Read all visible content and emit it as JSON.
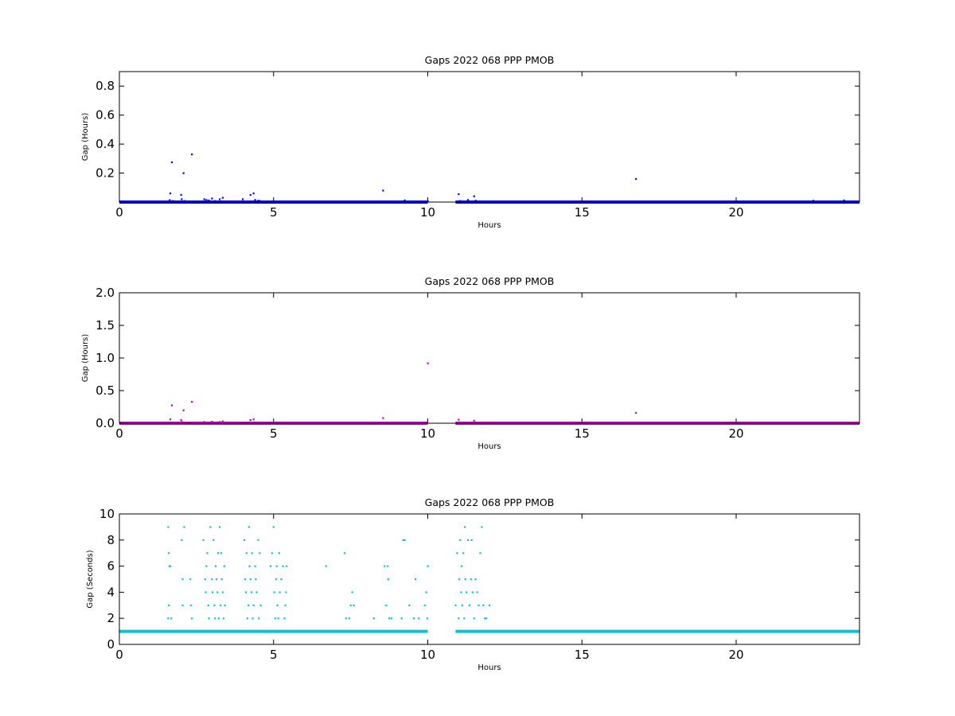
{
  "chart_data": [
    {
      "type": "scatter",
      "title": "Gaps 2022 068 PPP  PMOB",
      "xlabel": "Hours",
      "ylabel": "Gap (Hours)",
      "xlim": [
        0,
        24
      ],
      "ylim": [
        0,
        0.9
      ],
      "xticks": [
        0,
        5,
        10,
        15,
        20
      ],
      "yticks": [
        0.2,
        0.4,
        0.6,
        0.8
      ],
      "grid": false,
      "color": "#0000ff",
      "baseline": {
        "value": 0.0003,
        "ranges": [
          [
            0,
            10.0
          ],
          [
            10.9,
            24
          ]
        ]
      },
      "series": [
        {
          "points": [
            [
              1.63,
              0.014
            ],
            [
              1.65,
              0.06
            ],
            [
              1.7,
              0.275
            ],
            [
              1.73,
              0.008
            ],
            [
              2.0,
              0.05
            ],
            [
              2.02,
              0.02
            ],
            [
              2.08,
              0.2
            ],
            [
              2.12,
              0.008
            ],
            [
              2.35,
              0.33
            ],
            [
              2.3,
              0.005
            ],
            [
              2.75,
              0.02
            ],
            [
              2.82,
              0.015
            ],
            [
              2.9,
              0.012
            ],
            [
              3.0,
              0.025
            ],
            [
              3.1,
              0.008
            ],
            [
              3.25,
              0.02
            ],
            [
              3.35,
              0.03
            ],
            [
              4.0,
              0.02
            ],
            [
              4.25,
              0.05
            ],
            [
              4.35,
              0.06
            ],
            [
              4.4,
              0.015
            ],
            [
              4.5,
              0.01
            ],
            [
              4.55,
              0.008
            ],
            [
              5.0,
              0.007
            ],
            [
              8.55,
              0.08
            ],
            [
              8.6,
              0.005
            ],
            [
              9.25,
              0.012
            ],
            [
              10.0,
              0.005
            ],
            [
              11.0,
              0.055
            ],
            [
              11.05,
              0.008
            ],
            [
              11.3,
              0.015
            ],
            [
              11.5,
              0.04
            ],
            [
              11.55,
              0.01
            ],
            [
              16.75,
              0.16
            ],
            [
              22.5,
              0.01
            ],
            [
              23.5,
              0.012
            ]
          ]
        }
      ]
    },
    {
      "type": "scatter",
      "title": "Gaps 2022 068 PPP  PMOB",
      "xlabel": "Hours",
      "ylabel": "Gap (Hours)",
      "xlim": [
        0,
        24
      ],
      "ylim": [
        0,
        2.0
      ],
      "xticks": [
        0,
        5,
        10,
        15,
        20
      ],
      "yticks": [
        0.0,
        0.5,
        1.0,
        1.5,
        2.0
      ],
      "grid": false,
      "color": "#bf00bf",
      "baseline": {
        "value": 0.0003,
        "ranges": [
          [
            0,
            10.0
          ],
          [
            10.9,
            24
          ]
        ]
      },
      "series": [
        {
          "points": [
            [
              1.63,
              0.014
            ],
            [
              1.65,
              0.06
            ],
            [
              1.7,
              0.275
            ],
            [
              1.73,
              0.008
            ],
            [
              2.0,
              0.05
            ],
            [
              2.02,
              0.02
            ],
            [
              2.08,
              0.2
            ],
            [
              2.12,
              0.008
            ],
            [
              2.35,
              0.33
            ],
            [
              2.3,
              0.005
            ],
            [
              2.75,
              0.02
            ],
            [
              3.0,
              0.025
            ],
            [
              3.25,
              0.02
            ],
            [
              3.35,
              0.03
            ],
            [
              4.25,
              0.05
            ],
            [
              4.35,
              0.06
            ],
            [
              4.4,
              0.015
            ],
            [
              8.55,
              0.08
            ],
            [
              10.0,
              0.92
            ],
            [
              11.0,
              0.055
            ],
            [
              11.05,
              0.008
            ],
            [
              11.5,
              0.04
            ],
            [
              16.75,
              0.16
            ]
          ]
        }
      ]
    },
    {
      "type": "scatter",
      "title": "Gaps 2022 068 PPP  PMOB",
      "xlabel": "Hours",
      "ylabel": "Gap (Seconds)",
      "xlim": [
        0,
        24
      ],
      "ylim": [
        0,
        10
      ],
      "xticks": [
        0,
        5,
        10,
        15,
        20
      ],
      "yticks": [
        0,
        2,
        4,
        6,
        8,
        10
      ],
      "grid": false,
      "color": "#17becf",
      "baseline": {
        "value": 1,
        "ranges": [
          [
            0,
            10.0
          ],
          [
            10.9,
            24
          ]
        ]
      },
      "series": [
        {
          "points": [
            [
              1.58,
              9
            ],
            [
              1.6,
              7
            ],
            [
              1.62,
              6
            ],
            [
              1.65,
              6
            ],
            [
              1.6,
              3
            ],
            [
              1.58,
              2
            ],
            [
              1.68,
              2
            ],
            [
              2.02,
              8
            ],
            [
              2.05,
              5
            ],
            [
              2.1,
              9
            ],
            [
              2.05,
              3
            ],
            [
              2.3,
              5
            ],
            [
              2.32,
              3
            ],
            [
              2.35,
              2
            ],
            [
              2.72,
              8
            ],
            [
              2.78,
              5
            ],
            [
              2.8,
              4
            ],
            [
              2.82,
              6
            ],
            [
              2.85,
              7
            ],
            [
              2.88,
              3
            ],
            [
              2.9,
              2
            ],
            [
              2.95,
              9
            ],
            [
              3.0,
              5
            ],
            [
              3.02,
              4
            ],
            [
              3.05,
              8
            ],
            [
              3.08,
              3
            ],
            [
              3.1,
              2
            ],
            [
              3.12,
              6
            ],
            [
              3.15,
              5
            ],
            [
              3.18,
              4
            ],
            [
              3.2,
              7
            ],
            [
              3.22,
              2
            ],
            [
              3.25,
              9
            ],
            [
              3.28,
              3
            ],
            [
              3.3,
              7
            ],
            [
              3.32,
              5
            ],
            [
              3.35,
              4
            ],
            [
              3.38,
              2
            ],
            [
              3.4,
              6
            ],
            [
              3.42,
              3
            ],
            [
              4.05,
              8
            ],
            [
              4.08,
              5
            ],
            [
              4.1,
              4
            ],
            [
              4.12,
              7
            ],
            [
              4.15,
              2
            ],
            [
              4.18,
              3
            ],
            [
              4.2,
              9
            ],
            [
              4.22,
              6
            ],
            [
              4.25,
              5
            ],
            [
              4.28,
              4
            ],
            [
              4.3,
              7
            ],
            [
              4.32,
              2
            ],
            [
              4.35,
              3
            ],
            [
              4.4,
              6
            ],
            [
              4.42,
              5
            ],
            [
              4.45,
              4
            ],
            [
              4.5,
              8
            ],
            [
              4.52,
              2
            ],
            [
              4.55,
              7
            ],
            [
              4.58,
              3
            ],
            [
              4.9,
              6
            ],
            [
              4.95,
              7
            ],
            [
              5.0,
              9
            ],
            [
              5.02,
              4
            ],
            [
              5.05,
              2
            ],
            [
              5.08,
              5
            ],
            [
              5.1,
              6
            ],
            [
              5.12,
              3
            ],
            [
              5.15,
              2
            ],
            [
              5.18,
              7
            ],
            [
              5.2,
              4
            ],
            [
              5.25,
              5
            ],
            [
              5.3,
              6
            ],
            [
              5.35,
              2
            ],
            [
              5.38,
              3
            ],
            [
              5.4,
              4
            ],
            [
              5.42,
              6
            ],
            [
              6.7,
              6
            ],
            [
              7.3,
              7
            ],
            [
              7.35,
              2
            ],
            [
              7.45,
              2
            ],
            [
              7.5,
              3
            ],
            [
              7.55,
              4
            ],
            [
              7.6,
              3
            ],
            [
              8.25,
              2
            ],
            [
              8.6,
              6
            ],
            [
              8.65,
              3
            ],
            [
              8.7,
              6
            ],
            [
              8.72,
              5
            ],
            [
              8.75,
              2
            ],
            [
              8.82,
              2
            ],
            [
              9.15,
              2
            ],
            [
              9.2,
              8
            ],
            [
              9.25,
              8
            ],
            [
              9.4,
              3
            ],
            [
              9.55,
              2
            ],
            [
              9.6,
              5
            ],
            [
              9.7,
              2
            ],
            [
              9.9,
              3
            ],
            [
              9.95,
              4
            ],
            [
              10.0,
              6
            ],
            [
              9.98,
              2
            ],
            [
              10.9,
              3
            ],
            [
              10.95,
              7
            ],
            [
              11.0,
              2
            ],
            [
              11.02,
              5
            ],
            [
              11.05,
              8
            ],
            [
              11.08,
              4
            ],
            [
              11.1,
              6
            ],
            [
              11.12,
              3
            ],
            [
              11.15,
              7
            ],
            [
              11.18,
              2
            ],
            [
              11.2,
              9
            ],
            [
              11.22,
              5
            ],
            [
              11.25,
              4
            ],
            [
              11.3,
              8
            ],
            [
              11.35,
              3
            ],
            [
              11.4,
              5
            ],
            [
              11.42,
              8
            ],
            [
              11.45,
              4
            ],
            [
              11.5,
              2
            ],
            [
              11.55,
              5
            ],
            [
              11.6,
              4
            ],
            [
              11.65,
              3
            ],
            [
              11.7,
              7
            ],
            [
              11.75,
              9
            ],
            [
              11.8,
              3
            ],
            [
              11.85,
              2
            ],
            [
              11.9,
              2
            ],
            [
              12.0,
              3
            ]
          ]
        }
      ]
    }
  ]
}
